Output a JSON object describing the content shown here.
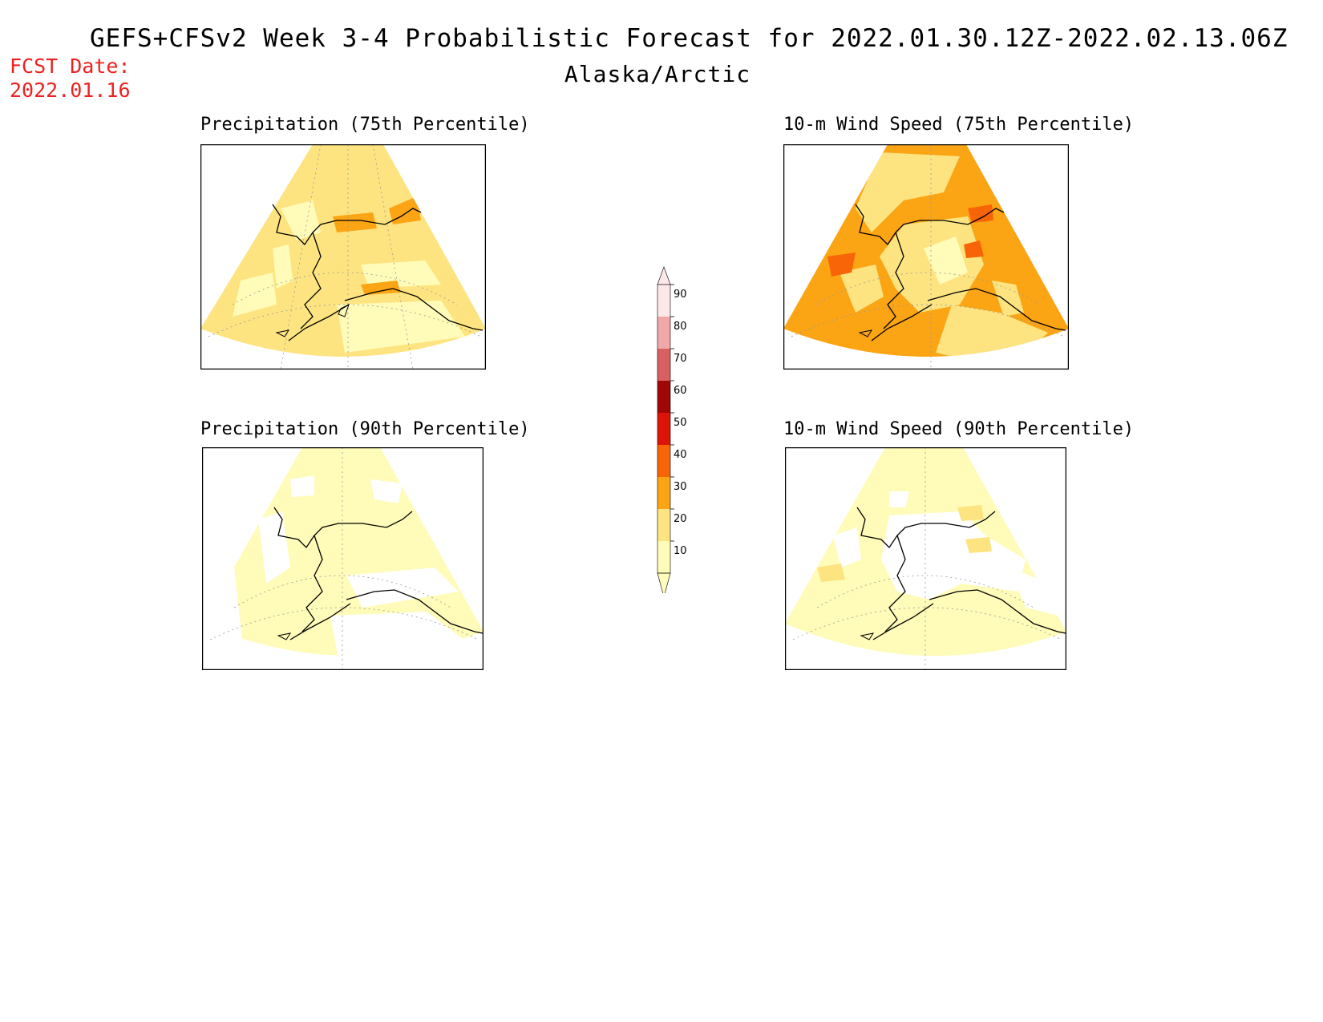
{
  "header": {
    "title": "GEFS+CFSv2 Week 3-4 Probabilistic Forecast for 2022.01.30.12Z-2022.02.13.06Z",
    "region": "Alaska/Arctic",
    "fcst_label": "FCST Date:",
    "fcst_date": "2022.01.16"
  },
  "panels": [
    {
      "id": "precip-75",
      "title": "Precipitation (75th Percentile)",
      "dominant_category": "20-30"
    },
    {
      "id": "wind-75",
      "title": "10-m Wind Speed (75th Percentile)",
      "dominant_category": "30-40"
    },
    {
      "id": "precip-90",
      "title": "Precipitation (90th Percentile)",
      "dominant_category": "10-20"
    },
    {
      "id": "wind-90",
      "title": "10-m Wind Speed (90th Percentile)",
      "dominant_category": "10-20"
    }
  ],
  "colorbar": {
    "levels": [
      "10",
      "20",
      "30",
      "40",
      "50",
      "60",
      "70",
      "80",
      "90"
    ],
    "colors": [
      "#fffbb8",
      "#fde480",
      "#fba414",
      "#f86408",
      "#dd1408",
      "#a00808",
      "#d86060",
      "#f2a8a8",
      "#fde8e8"
    ]
  }
}
